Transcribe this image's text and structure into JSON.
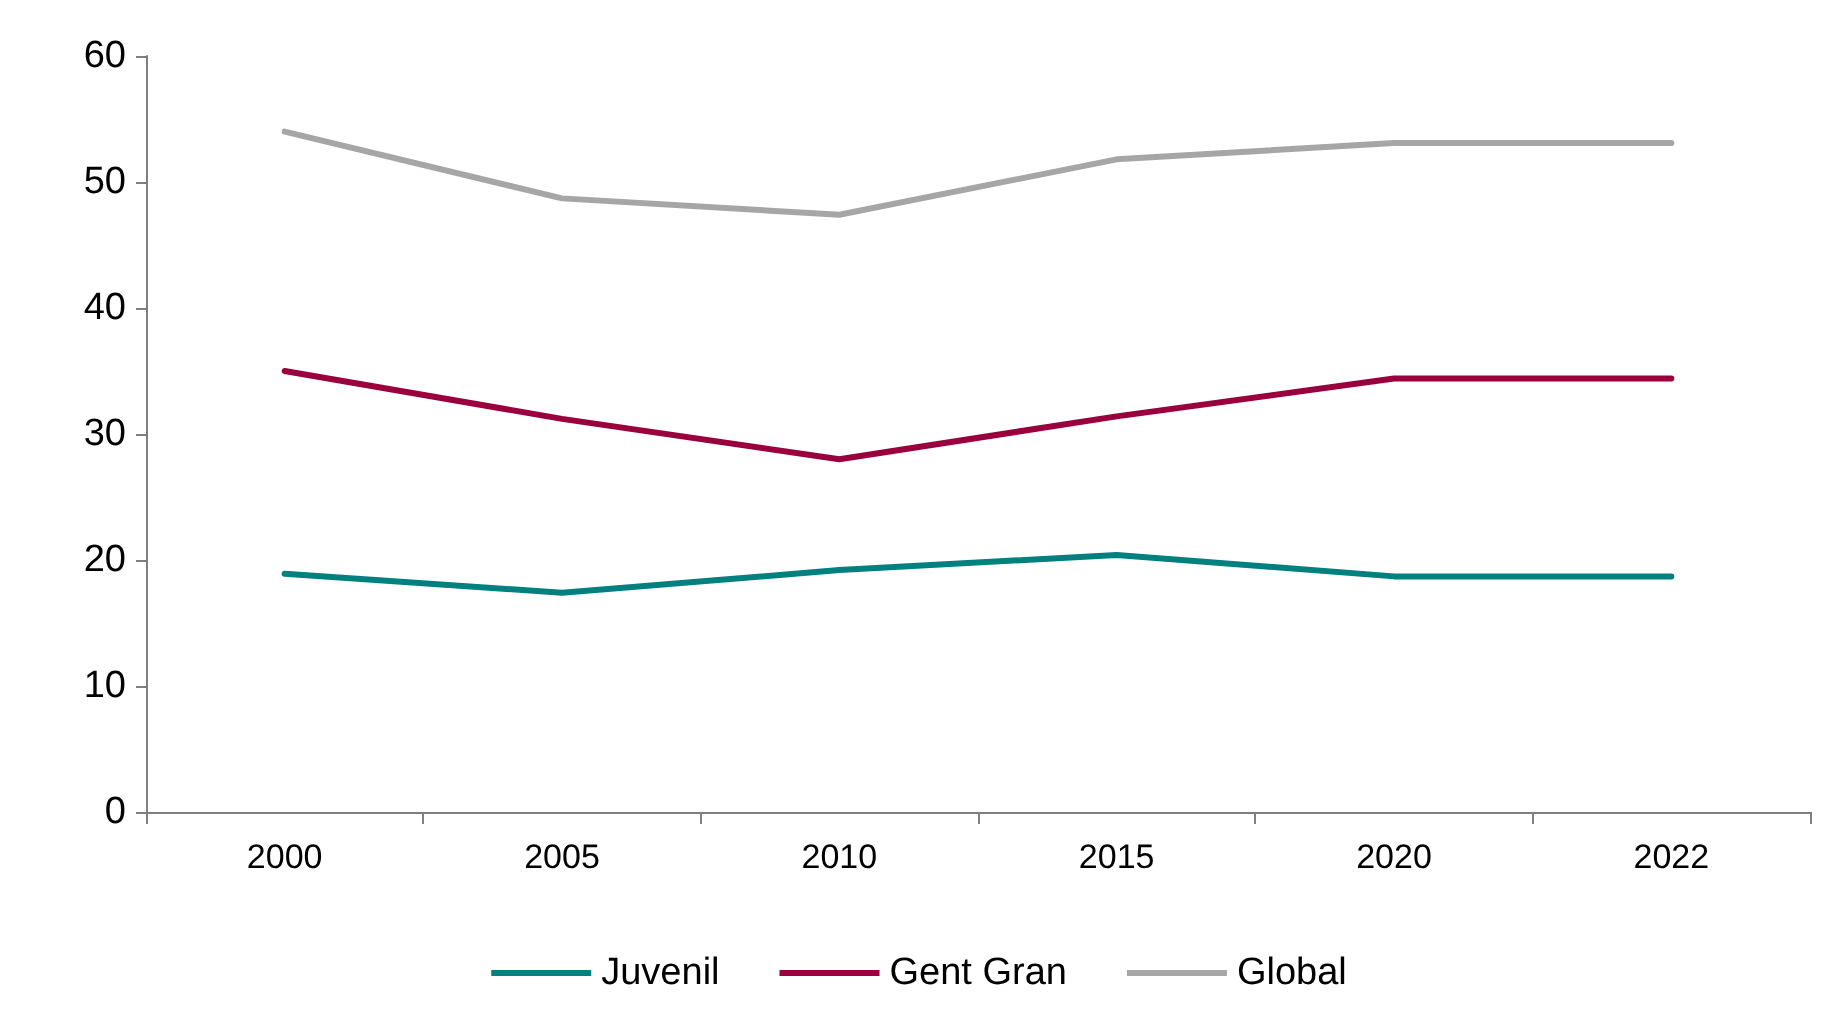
{
  "chart_data": {
    "type": "line",
    "categories": [
      "2000",
      "2005",
      "2010",
      "2015",
      "2020",
      "2022"
    ],
    "series": [
      {
        "name": "Juvenil",
        "color": "#00807f",
        "values": [
          18.9,
          17.4,
          19.2,
          20.4,
          18.7,
          18.7
        ]
      },
      {
        "name": "Gent Gran",
        "color": "#99003d",
        "values": [
          35,
          31.2,
          28,
          31.4,
          34.4,
          34.4
        ]
      },
      {
        "name": "Global",
        "color": "#a6a6a6",
        "values": [
          54,
          48.7,
          47.4,
          51.8,
          53.1,
          53.1
        ]
      }
    ],
    "ylim": [
      0,
      60
    ],
    "yticks": [
      0,
      10,
      20,
      30,
      40,
      50,
      60
    ],
    "grid": false,
    "legend": "bottom",
    "marker": "none",
    "line_style": "solid"
  }
}
